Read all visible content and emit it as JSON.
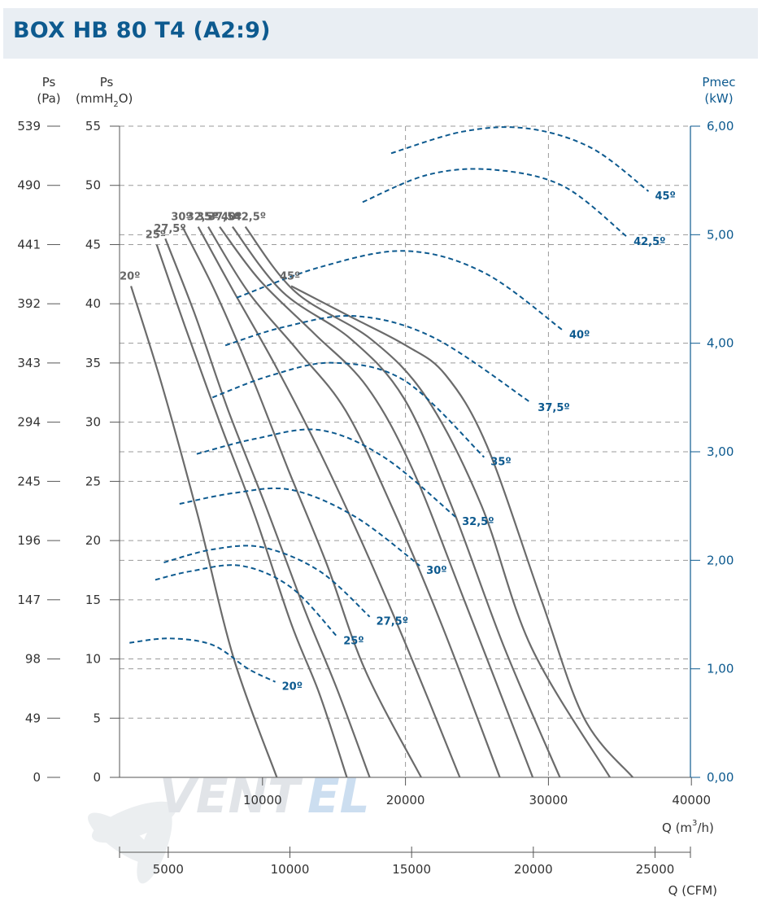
{
  "title": "BOX HB 80 T4 (A2:9)",
  "watermark": {
    "text_a": "VENT",
    "text_b": "EL"
  },
  "colors": {
    "pressure_curve": "#6b6b6b",
    "power_curve": "#0d5a8f",
    "grid": "#9a9a9a",
    "brand": "#0d5a8f"
  },
  "axes": {
    "left_pa_label": [
      "Ps",
      "(Pa)"
    ],
    "left_mm_label": [
      "Ps",
      "(mmH",
      "2",
      "O)"
    ],
    "right_label": [
      "Pmec",
      "(kW)"
    ],
    "x_m3h_label": [
      "Q (m",
      "3",
      "/h)"
    ],
    "x_cfm_label": "Q (CFM)",
    "pa_ticks": [
      "539",
      "490",
      "441",
      "392",
      "343",
      "294",
      "245",
      "196",
      "147",
      "98",
      "49",
      "0"
    ],
    "mm_ticks": [
      "55",
      "50",
      "45",
      "40",
      "35",
      "30",
      "25",
      "20",
      "15",
      "10",
      "5",
      "0"
    ],
    "kw_ticks": [
      "6,00",
      "5,00",
      "4,00",
      "3,00",
      "2,00",
      "1,00",
      "0,00"
    ],
    "m3h_ticks": [
      "10000",
      "20000",
      "30000",
      "40000"
    ],
    "cfm_ticks": [
      "5000",
      "10000",
      "15000",
      "20000",
      "25000"
    ]
  },
  "chart_data": {
    "type": "line",
    "title": "BOX HB 80 T4 (A2:9)",
    "x_unit": "m3/h",
    "xlim": [
      0,
      40000
    ],
    "ylim_mmH2O": [
      0,
      55
    ],
    "ylim_kW": [
      0,
      6
    ],
    "pressure_series": [
      {
        "name": "20º",
        "label": "20º",
        "points": [
          [
            800,
            41.5
          ],
          [
            3000,
            33
          ],
          [
            5500,
            22
          ],
          [
            8000,
            10
          ],
          [
            11000,
            0
          ]
        ]
      },
      {
        "name": "25º",
        "label": "25º",
        "points": [
          [
            2600,
            45
          ],
          [
            4600,
            38
          ],
          [
            7000,
            30
          ],
          [
            9500,
            22
          ],
          [
            12000,
            13
          ],
          [
            14000,
            7
          ],
          [
            15900,
            0
          ]
        ]
      },
      {
        "name": "27,5º",
        "label": "27,5º",
        "points": [
          [
            3200,
            45.5
          ],
          [
            5300,
            39
          ],
          [
            7600,
            31
          ],
          [
            10200,
            23
          ],
          [
            13000,
            14
          ],
          [
            15200,
            7.5
          ],
          [
            17500,
            0
          ]
        ]
      },
      {
        "name": "30º",
        "label": "30º",
        "points": [
          [
            4400,
            46.5
          ],
          [
            6700,
            41
          ],
          [
            9200,
            34
          ],
          [
            11800,
            26
          ],
          [
            14500,
            18
          ],
          [
            17200,
            9
          ],
          [
            21100,
            0
          ]
        ]
      },
      {
        "name": "32,5º",
        "label": "32,5º",
        "points": [
          [
            5500,
            46.5
          ],
          [
            8000,
            41
          ],
          [
            10800,
            35
          ],
          [
            13800,
            28
          ],
          [
            16900,
            20
          ],
          [
            20100,
            11
          ],
          [
            23800,
            0
          ]
        ]
      },
      {
        "name": "35º",
        "label": "35º",
        "points": [
          [
            6200,
            46.5
          ],
          [
            9000,
            41
          ],
          [
            12500,
            36
          ],
          [
            15800,
            31
          ],
          [
            19000,
            23
          ],
          [
            22500,
            13
          ],
          [
            26600,
            0
          ]
        ]
      },
      {
        "name": "37,5º",
        "label": "37,5º",
        "points": [
          [
            7000,
            46.5
          ],
          [
            9800,
            42
          ],
          [
            13600,
            37.5
          ],
          [
            17300,
            33
          ],
          [
            20500,
            26
          ],
          [
            24100,
            15
          ],
          [
            28900,
            0
          ]
        ]
      },
      {
        "name": "40º",
        "label": "40º",
        "points": [
          [
            7900,
            46.5
          ],
          [
            11400,
            41
          ],
          [
            16200,
            37
          ],
          [
            19900,
            32
          ],
          [
            23200,
            23
          ],
          [
            26900,
            11
          ],
          [
            30800,
            0
          ]
        ]
      },
      {
        "name": "42,5º",
        "label": "42,5º",
        "points": [
          [
            8800,
            46.5
          ],
          [
            12300,
            41
          ],
          [
            17600,
            37
          ],
          [
            21500,
            32
          ],
          [
            25300,
            23
          ],
          [
            28800,
            11
          ],
          [
            34300,
            0
          ]
        ]
      },
      {
        "name": "45º",
        "label": "45º",
        "points": [
          [
            12000,
            41.5
          ],
          [
            16000,
            39
          ],
          [
            20000,
            36.5
          ],
          [
            22800,
            34
          ],
          [
            25700,
            28
          ],
          [
            29500,
            15
          ],
          [
            32500,
            5
          ],
          [
            35900,
            0
          ]
        ]
      }
    ],
    "power_series": [
      {
        "name": "20º",
        "label": "20º",
        "points": [
          [
            700,
            1.24
          ],
          [
            3500,
            1.28
          ],
          [
            6500,
            1.22
          ],
          [
            9000,
            1.0
          ],
          [
            10900,
            0.88
          ]
        ]
      },
      {
        "name": "25º",
        "label": "25º",
        "points": [
          [
            2500,
            1.82
          ],
          [
            5000,
            1.9
          ],
          [
            8500,
            1.95
          ],
          [
            12000,
            1.75
          ],
          [
            15200,
            1.3
          ]
        ]
      },
      {
        "name": "27,5º",
        "label": "27,5º",
        "points": [
          [
            3100,
            1.98
          ],
          [
            6500,
            2.1
          ],
          [
            10000,
            2.12
          ],
          [
            14000,
            1.9
          ],
          [
            17500,
            1.48
          ]
        ]
      },
      {
        "name": "30º",
        "label": "30º",
        "points": [
          [
            4200,
            2.52
          ],
          [
            8000,
            2.62
          ],
          [
            12000,
            2.65
          ],
          [
            16500,
            2.4
          ],
          [
            21000,
            1.95
          ]
        ]
      },
      {
        "name": "32,5º",
        "label": "32,5º",
        "points": [
          [
            5400,
            2.98
          ],
          [
            9500,
            3.12
          ],
          [
            14000,
            3.2
          ],
          [
            18500,
            2.95
          ],
          [
            23500,
            2.4
          ]
        ]
      },
      {
        "name": "35º",
        "label": "35º",
        "points": [
          [
            6500,
            3.5
          ],
          [
            10500,
            3.7
          ],
          [
            15000,
            3.82
          ],
          [
            20000,
            3.65
          ],
          [
            25500,
            2.95
          ]
        ]
      },
      {
        "name": "37,5º",
        "label": "37,5º",
        "points": [
          [
            7400,
            3.98
          ],
          [
            11500,
            4.15
          ],
          [
            16500,
            4.25
          ],
          [
            22000,
            4.05
          ],
          [
            28800,
            3.45
          ]
        ]
      },
      {
        "name": "40º",
        "label": "40º",
        "points": [
          [
            8200,
            4.42
          ],
          [
            14000,
            4.7
          ],
          [
            20000,
            4.85
          ],
          [
            25500,
            4.65
          ],
          [
            31000,
            4.12
          ]
        ]
      },
      {
        "name": "42,5º",
        "label": "42,5º",
        "points": [
          [
            17000,
            5.3
          ],
          [
            21500,
            5.55
          ],
          [
            26000,
            5.6
          ],
          [
            31000,
            5.45
          ],
          [
            35500,
            4.98
          ]
        ]
      },
      {
        "name": "45º",
        "label": "45º",
        "points": [
          [
            19000,
            5.75
          ],
          [
            24000,
            5.95
          ],
          [
            28500,
            5.98
          ],
          [
            33000,
            5.8
          ],
          [
            37000,
            5.4
          ]
        ]
      }
    ]
  }
}
